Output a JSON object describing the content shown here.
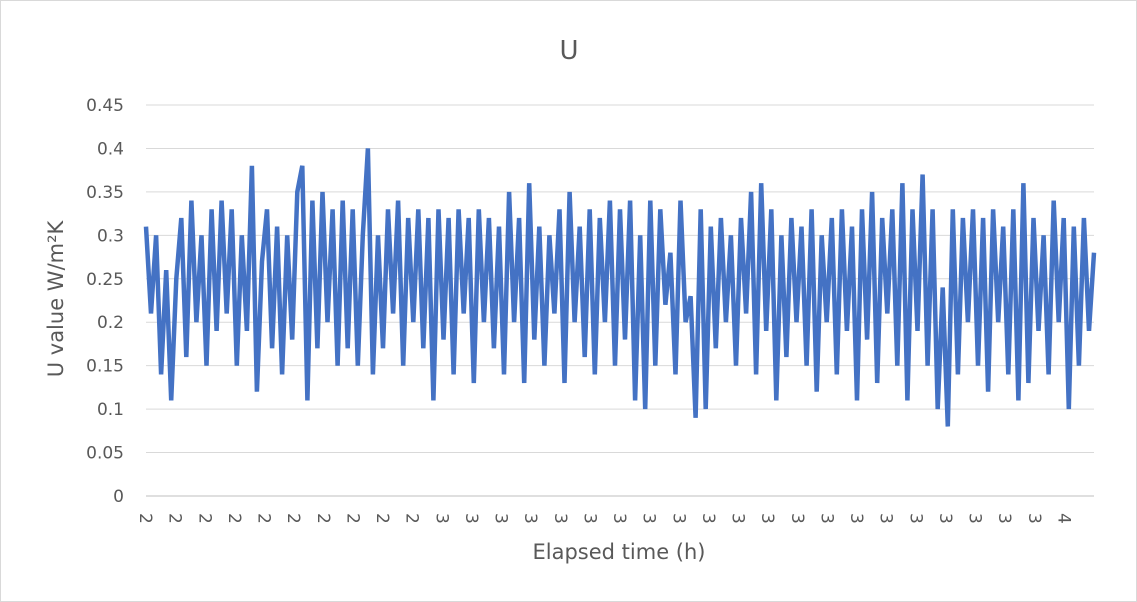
{
  "chart_data": {
    "type": "line",
    "title": "U",
    "xlabel": "Elapsed time (h)",
    "ylabel": "U value W/m²K",
    "ylim": [
      0,
      0.45
    ],
    "yticks": [
      "0",
      "0.05",
      "0.1",
      "0.15",
      "0.2",
      "0.25",
      "0.3",
      "0.35",
      "0.4",
      "0.45"
    ],
    "xtick_labels": [
      "2",
      "2",
      "2",
      "2",
      "2",
      "2",
      "2",
      "2",
      "2",
      "2",
      "3",
      "3",
      "3",
      "3",
      "3",
      "3",
      "3",
      "3",
      "3",
      "3",
      "3",
      "3",
      "3",
      "3",
      "3",
      "3",
      "3",
      "3",
      "3",
      "3",
      "3",
      "4"
    ],
    "grid": true,
    "legend": "none",
    "series": [
      {
        "color": "#4472c4",
        "x_range_hours": [
          2,
          4.2
        ],
        "values": [
          0.31,
          0.21,
          0.3,
          0.14,
          0.26,
          0.11,
          0.25,
          0.32,
          0.16,
          0.34,
          0.2,
          0.3,
          0.15,
          0.33,
          0.19,
          0.34,
          0.21,
          0.33,
          0.15,
          0.3,
          0.19,
          0.38,
          0.12,
          0.27,
          0.33,
          0.17,
          0.31,
          0.14,
          0.3,
          0.18,
          0.35,
          0.38,
          0.11,
          0.34,
          0.17,
          0.35,
          0.2,
          0.33,
          0.15,
          0.34,
          0.17,
          0.33,
          0.15,
          0.3,
          0.4,
          0.14,
          0.3,
          0.17,
          0.33,
          0.21,
          0.34,
          0.15,
          0.32,
          0.2,
          0.33,
          0.17,
          0.32,
          0.11,
          0.33,
          0.18,
          0.32,
          0.14,
          0.33,
          0.21,
          0.32,
          0.13,
          0.33,
          0.2,
          0.32,
          0.17,
          0.31,
          0.14,
          0.35,
          0.2,
          0.32,
          0.13,
          0.36,
          0.18,
          0.31,
          0.15,
          0.3,
          0.21,
          0.33,
          0.13,
          0.35,
          0.2,
          0.31,
          0.16,
          0.33,
          0.14,
          0.32,
          0.2,
          0.34,
          0.15,
          0.33,
          0.18,
          0.34,
          0.11,
          0.3,
          0.1,
          0.34,
          0.15,
          0.33,
          0.22,
          0.28,
          0.14,
          0.34,
          0.2,
          0.23,
          0.09,
          0.33,
          0.1,
          0.31,
          0.17,
          0.32,
          0.2,
          0.3,
          0.15,
          0.32,
          0.21,
          0.35,
          0.14,
          0.36,
          0.19,
          0.33,
          0.11,
          0.3,
          0.16,
          0.32,
          0.2,
          0.31,
          0.15,
          0.33,
          0.12,
          0.3,
          0.2,
          0.32,
          0.14,
          0.33,
          0.19,
          0.31,
          0.11,
          0.33,
          0.18,
          0.35,
          0.13,
          0.32,
          0.21,
          0.33,
          0.15,
          0.36,
          0.11,
          0.33,
          0.19,
          0.37,
          0.15,
          0.33,
          0.1,
          0.24,
          0.08,
          0.33,
          0.14,
          0.32,
          0.2,
          0.33,
          0.15,
          0.32,
          0.12,
          0.33,
          0.2,
          0.31,
          0.14,
          0.33,
          0.11,
          0.36,
          0.13,
          0.32,
          0.19,
          0.3,
          0.14,
          0.34,
          0.2,
          0.32,
          0.1,
          0.31,
          0.15,
          0.32,
          0.19,
          0.28
        ]
      }
    ]
  }
}
